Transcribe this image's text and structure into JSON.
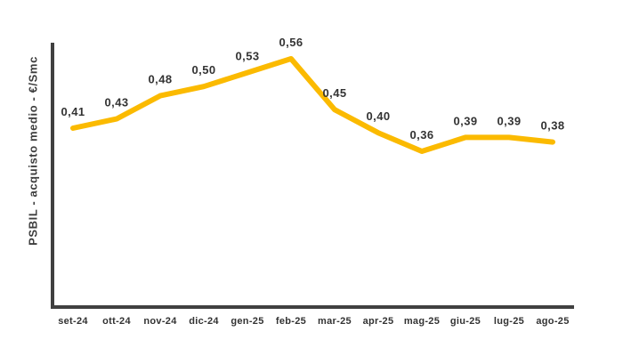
{
  "chart_data": {
    "type": "line",
    "title": "",
    "xlabel": "",
    "ylabel": "PSBIL - acquisto medio - €/Smc",
    "categories": [
      "set-24",
      "ott-24",
      "nov-24",
      "dic-24",
      "gen-25",
      "feb-25",
      "mar-25",
      "apr-25",
      "mag-25",
      "giu-25",
      "lug-25",
      "ago-25"
    ],
    "values": [
      0.41,
      0.43,
      0.48,
      0.5,
      0.53,
      0.56,
      0.45,
      0.4,
      0.36,
      0.39,
      0.39,
      0.38
    ],
    "value_labels": [
      "0,41",
      "0,43",
      "0,48",
      "0,50",
      "0,53",
      "0,56",
      "0,45",
      "0,40",
      "0,36",
      "0,39",
      "0,39",
      "0,38"
    ],
    "decimal_separator": ",",
    "line_color": "#FBBA00",
    "axis_color": "#404040",
    "label_color": "#333333",
    "grid": false,
    "legend_position": "none"
  }
}
